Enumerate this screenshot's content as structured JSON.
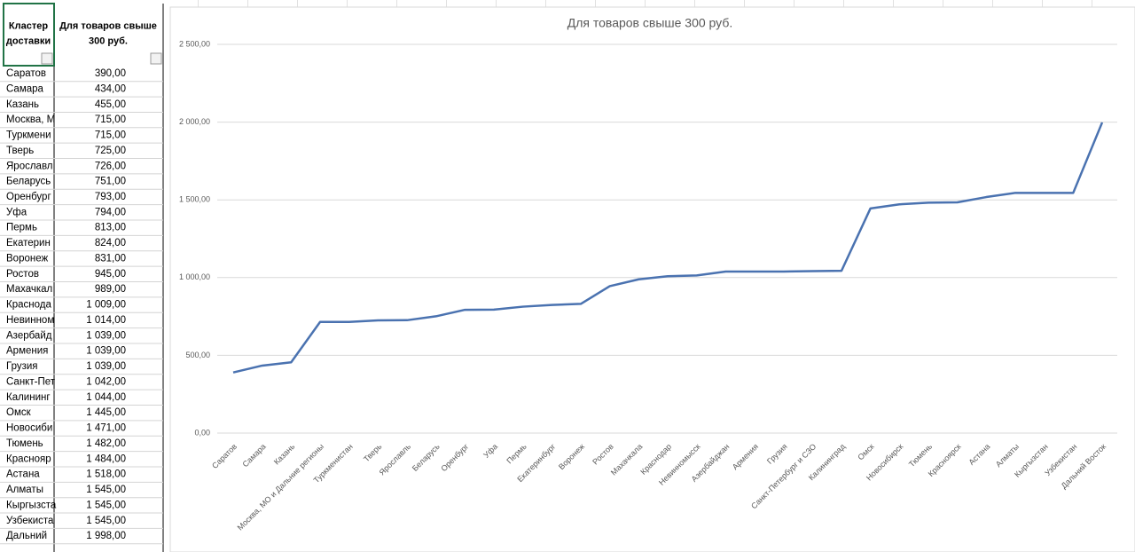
{
  "table": {
    "header": [
      "Кластер доставки",
      "Для товаров свыше 300 руб."
    ],
    "rows": [
      [
        "Саратов",
        "390,00"
      ],
      [
        "Самара",
        "434,00"
      ],
      [
        "Казань",
        "455,00"
      ],
      [
        "Москва, М",
        "715,00"
      ],
      [
        "Туркмени",
        "715,00"
      ],
      [
        "Тверь",
        "725,00"
      ],
      [
        "Ярославл",
        "726,00"
      ],
      [
        "Беларусь",
        "751,00"
      ],
      [
        "Оренбург",
        "793,00"
      ],
      [
        "Уфа",
        "794,00"
      ],
      [
        "Пермь",
        "813,00"
      ],
      [
        "Екатерин",
        "824,00"
      ],
      [
        "Воронеж",
        "831,00"
      ],
      [
        "Ростов",
        "945,00"
      ],
      [
        "Махачкал",
        "989,00"
      ],
      [
        "Краснода",
        "1 009,00"
      ],
      [
        "Невинном",
        "1 014,00"
      ],
      [
        "Азербайд",
        "1 039,00"
      ],
      [
        "Армения",
        "1 039,00"
      ],
      [
        "Грузия",
        "1 039,00"
      ],
      [
        "Санкт-Пет",
        "1 042,00"
      ],
      [
        "Калининг",
        "1 044,00"
      ],
      [
        "Омск",
        "1 445,00"
      ],
      [
        "Новосиби",
        "1 471,00"
      ],
      [
        "Тюмень",
        "1 482,00"
      ],
      [
        "Краснояр",
        "1 484,00"
      ],
      [
        "Астана",
        "1 518,00"
      ],
      [
        "Алматы",
        "1 545,00"
      ],
      [
        "Кыргызста",
        "1 545,00"
      ],
      [
        "Узбекиста",
        "1 545,00"
      ],
      [
        "Дальний",
        "1 998,00"
      ]
    ]
  },
  "chart_data": {
    "type": "line",
    "title": "Для товаров свыше 300 руб.",
    "categories": [
      "Саратов",
      "Самара",
      "Казань",
      "Москва, МО и Дальние регионы",
      "Туркменистан",
      "Тверь",
      "Ярославль",
      "Беларусь",
      "Оренбург",
      "Уфа",
      "Пермь",
      "Екатеринбург",
      "Воронеж",
      "Ростов",
      "Махачкала",
      "Краснодар",
      "Невинномысск",
      "Азербайджан",
      "Армения",
      "Грузия",
      "Санкт-Петербург и СЗО",
      "Калининград",
      "Омск",
      "Новосибирск",
      "Тюмень",
      "Красноярск",
      "Астана",
      "Алматы",
      "Кыргызстан",
      "Узбекистан",
      "Дальний Восток"
    ],
    "values": [
      390,
      434,
      455,
      715,
      715,
      725,
      726,
      751,
      793,
      794,
      813,
      824,
      831,
      945,
      989,
      1009,
      1014,
      1039,
      1039,
      1039,
      1042,
      1044,
      1445,
      1471,
      1482,
      1484,
      1518,
      1545,
      1545,
      1545,
      1998
    ],
    "color": "#4a72b0",
    "ylim": [
      0,
      2500
    ],
    "yticks": [
      {
        "value": 0,
        "label": "0,00"
      },
      {
        "value": 500,
        "label": "500,00"
      },
      {
        "value": 1000,
        "label": "1 000,00"
      },
      {
        "value": 1500,
        "label": "1 500,00"
      },
      {
        "value": 2000,
        "label": "2 000,00"
      },
      {
        "value": 2500,
        "label": "2 500,00"
      }
    ],
    "grid": true
  }
}
